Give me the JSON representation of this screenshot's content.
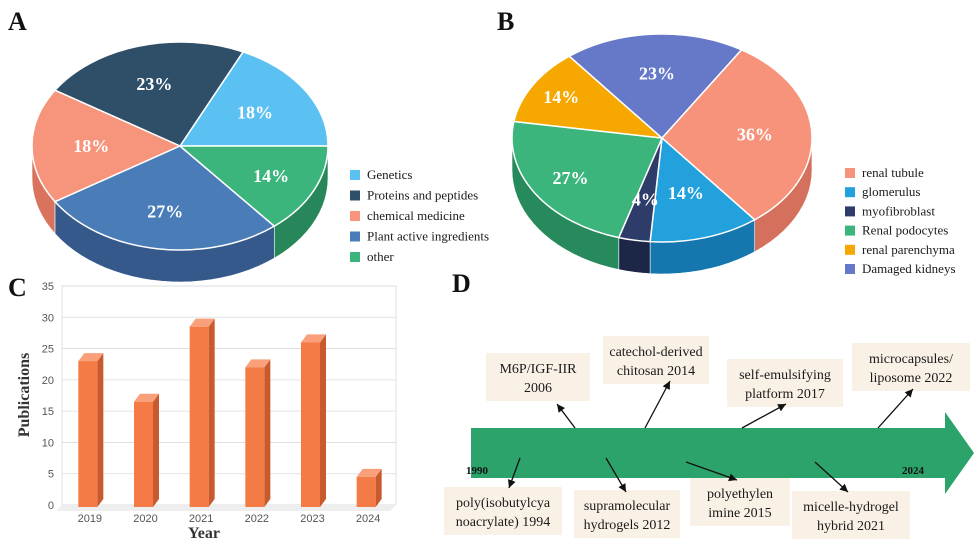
{
  "panels": {
    "a": "A",
    "b": "B",
    "c": "C",
    "d": "D"
  },
  "chart_data": [
    {
      "panel": "A",
      "type": "pie",
      "labels": [
        "Genetics",
        "Proteins and peptides",
        "chemical medicine",
        "Plant active ingredients",
        "other"
      ],
      "values": [
        18,
        23,
        18,
        27,
        14
      ],
      "value_labels": [
        "18%",
        "23%",
        "18%",
        "27%",
        "14%"
      ],
      "colors": [
        "#5BC0F2",
        "#2F4E68",
        "#F7957C",
        "#4A7DB8",
        "#3BB57C"
      ],
      "side_colors": [
        "#3D96C6",
        "#1E3449",
        "#D9735E",
        "#34598A",
        "#27875B"
      ],
      "legend_position": "right"
    },
    {
      "panel": "B",
      "type": "pie",
      "labels": [
        "renal tubule",
        "glomerulus",
        "myofibroblast",
        "Renal podocytes",
        "renal parenchyma",
        "Damaged kidneys"
      ],
      "values": [
        36,
        14,
        4,
        27,
        14,
        23
      ],
      "value_labels": [
        "36%",
        "14%",
        "4%",
        "27%",
        "14%",
        "23%"
      ],
      "colors": [
        "#F7927B",
        "#23A1DD",
        "#2E3C6A",
        "#3BB57C",
        "#F6A800",
        "#6679C8"
      ],
      "side_colors": [
        "#D5705C",
        "#1577AE",
        "#1C2647",
        "#268A5C",
        "#C78600",
        "#4A599C"
      ],
      "legend_position": "right"
    },
    {
      "panel": "C",
      "type": "bar",
      "categories": [
        "2019",
        "2020",
        "2021",
        "2022",
        "2023",
        "2024"
      ],
      "values": [
        23,
        16.5,
        28.5,
        22,
        26,
        4.5
      ],
      "xlabel": "Year",
      "ylabel": "Publications",
      "ylim": [
        0,
        35
      ],
      "yticks": [
        "0",
        "5",
        "10",
        "15",
        "20",
        "25",
        "30",
        "35"
      ],
      "grid": true,
      "bar_color": "#F47B45"
    }
  ],
  "timeline": {
    "start_label": "1990",
    "end_label": "2024",
    "arrow_color": "#2BA36B",
    "events": [
      {
        "line1": "M6P/IGF-IIR",
        "line2": "2006"
      },
      {
        "line1": "catechol-derived",
        "line2": "chitosan 2014"
      },
      {
        "line1": "self-emulsifying",
        "line2": "platform 2017"
      },
      {
        "line1": "microcapsules/",
        "line2": "liposome 2022"
      },
      {
        "line1": "poly(isobutylcya",
        "line2": "noacrylate) 1994"
      },
      {
        "line1": "supramolecular",
        "line2": "hydrogels 2012"
      },
      {
        "line1": "polyethylen",
        "line2": "imine 2015"
      },
      {
        "line1": "micelle-hydrogel",
        "line2": "hybrid 2021"
      }
    ]
  }
}
